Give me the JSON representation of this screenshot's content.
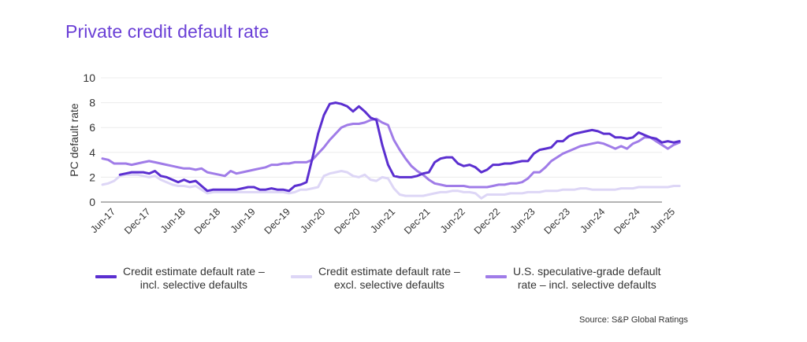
{
  "title": "Private credit default rate",
  "source": "Source: S&P Global Ratings",
  "chart_data": {
    "type": "line",
    "title": "Private credit default rate",
    "xlabel": "",
    "ylabel": "PC default rate",
    "ylim": [
      0,
      10
    ],
    "yticks": [
      "0",
      "2",
      "4",
      "6",
      "8",
      "10"
    ],
    "grid": true,
    "legend_position": "bottom",
    "x_start": "Jun-17",
    "x_frequency": "monthly",
    "xticks": [
      "Jun-17",
      "Dec-17",
      "Jun-18",
      "Dec-18",
      "Jun-19",
      "Dec-19",
      "Jun-20",
      "Dec-20",
      "Jun-21",
      "Dec-21",
      "Jun-22",
      "Dec-22",
      "Jun-23",
      "Dec-23",
      "Jun-24",
      "Dec-24",
      "Jun-25"
    ],
    "series": [
      {
        "name": "Credit estimate default rate – incl. selective defaults",
        "legend_lines": [
          "Credit estimate default rate –",
          "incl. selective defaults"
        ],
        "color": "#5b2fd0",
        "values": [
          null,
          null,
          null,
          2.2,
          2.3,
          2.4,
          2.4,
          2.4,
          2.3,
          2.5,
          2.1,
          2.0,
          1.8,
          1.6,
          1.8,
          1.6,
          1.7,
          1.3,
          0.9,
          1.0,
          1.0,
          1.0,
          1.0,
          1.0,
          1.1,
          1.2,
          1.2,
          1.0,
          1.0,
          1.1,
          1.0,
          1.0,
          0.9,
          1.3,
          1.4,
          1.6,
          3.5,
          5.5,
          7.0,
          7.9,
          8.0,
          7.9,
          7.7,
          7.3,
          7.7,
          7.3,
          6.8,
          6.6,
          4.6,
          3.0,
          2.1,
          2.0,
          2.0,
          2.0,
          2.1,
          2.3,
          2.4,
          3.2,
          3.5,
          3.6,
          3.6,
          3.1,
          2.9,
          3.0,
          2.8,
          2.4,
          2.6,
          3.0,
          3.0,
          3.1,
          3.1,
          3.2,
          3.3,
          3.3,
          3.9,
          4.2,
          4.3,
          4.4,
          4.9,
          4.9,
          5.3,
          5.5,
          5.6,
          5.7,
          5.8,
          5.7,
          5.5,
          5.5,
          5.2,
          5.2,
          5.1,
          5.2,
          5.6,
          5.4,
          5.2,
          5.1,
          4.8,
          4.9,
          4.8,
          4.9
        ]
      },
      {
        "name": "Credit estimate default rate – excl. selective defaults",
        "legend_lines": [
          "Credit estimate default rate –",
          "excl. selective defaults"
        ],
        "color": "#ddd6f6",
        "values": [
          1.4,
          1.5,
          1.7,
          2.1,
          2.2,
          2.2,
          2.2,
          2.1,
          2.0,
          2.1,
          1.8,
          1.6,
          1.4,
          1.3,
          1.3,
          1.2,
          1.3,
          1.0,
          0.7,
          0.8,
          0.8,
          0.8,
          0.8,
          0.8,
          0.8,
          0.8,
          0.8,
          0.8,
          0.8,
          0.8,
          0.8,
          0.8,
          0.7,
          0.8,
          1.0,
          1.0,
          1.1,
          1.2,
          2.1,
          2.3,
          2.4,
          2.5,
          2.4,
          2.1,
          2.0,
          2.2,
          1.8,
          1.7,
          2.0,
          1.9,
          1.1,
          0.6,
          0.5,
          0.5,
          0.5,
          0.5,
          0.6,
          0.7,
          0.8,
          0.8,
          0.9,
          0.9,
          0.8,
          0.8,
          0.7,
          0.3,
          0.6,
          0.6,
          0.6,
          0.6,
          0.7,
          0.7,
          0.7,
          0.8,
          0.8,
          0.8,
          0.9,
          0.9,
          0.9,
          1.0,
          1.0,
          1.0,
          1.1,
          1.1,
          1.0,
          1.0,
          1.0,
          1.0,
          1.0,
          1.1,
          1.1,
          1.1,
          1.2,
          1.2,
          1.2,
          1.2,
          1.2,
          1.2,
          1.3,
          1.3
        ]
      },
      {
        "name": "U.S. speculative-grade default rate – incl. selective defaults",
        "legend_lines": [
          "U.S. speculative-grade default",
          "rate – incl. selective defaults"
        ],
        "color": "#a07ce8",
        "values": [
          3.5,
          3.4,
          3.1,
          3.1,
          3.1,
          3.0,
          3.1,
          3.2,
          3.3,
          3.2,
          3.1,
          3.0,
          2.9,
          2.8,
          2.7,
          2.7,
          2.6,
          2.7,
          2.4,
          2.3,
          2.2,
          2.1,
          2.5,
          2.3,
          2.4,
          2.5,
          2.6,
          2.7,
          2.8,
          3.0,
          3.0,
          3.1,
          3.1,
          3.2,
          3.2,
          3.2,
          3.4,
          3.9,
          4.4,
          5.0,
          5.5,
          6.0,
          6.2,
          6.3,
          6.3,
          6.4,
          6.6,
          6.7,
          6.4,
          6.2,
          5.0,
          4.2,
          3.5,
          2.9,
          2.5,
          2.2,
          1.8,
          1.5,
          1.4,
          1.3,
          1.3,
          1.3,
          1.3,
          1.2,
          1.2,
          1.2,
          1.2,
          1.3,
          1.4,
          1.4,
          1.5,
          1.5,
          1.6,
          1.9,
          2.4,
          2.4,
          2.8,
          3.3,
          3.6,
          3.9,
          4.1,
          4.3,
          4.5,
          4.6,
          4.7,
          4.8,
          4.7,
          4.5,
          4.3,
          4.5,
          4.3,
          4.7,
          4.9,
          5.2,
          5.2,
          4.9,
          4.6,
          4.3,
          4.6,
          4.8
        ]
      }
    ]
  }
}
